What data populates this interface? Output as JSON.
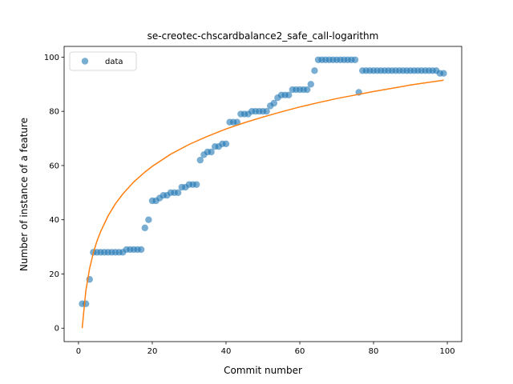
{
  "chart_data": {
    "type": "scatter",
    "title": "se-creotec-chscardbalance2_safe_call-logarithm",
    "xlabel": "Commit number",
    "ylabel": "Number of instance of a feature",
    "xlim": [
      -3.9,
      103.9
    ],
    "ylim": [
      -4.95,
      103.95
    ],
    "xticks": [
      0,
      20,
      40,
      60,
      80,
      100
    ],
    "yticks": [
      0,
      20,
      40,
      60,
      80,
      100
    ],
    "grid": false,
    "legend": {
      "location": "top-left",
      "entries": [
        "data"
      ]
    },
    "colors": {
      "data": "#1f77b4",
      "fit": "#ff7f0e"
    },
    "series": [
      {
        "name": "data",
        "kind": "scatter",
        "x": [
          1,
          2,
          3,
          4,
          5,
          6,
          7,
          8,
          9,
          10,
          11,
          12,
          13,
          14,
          15,
          16,
          17,
          18,
          19,
          20,
          21,
          22,
          23,
          24,
          25,
          26,
          27,
          28,
          29,
          30,
          31,
          32,
          33,
          34,
          35,
          36,
          37,
          38,
          39,
          40,
          41,
          42,
          43,
          44,
          45,
          46,
          47,
          48,
          49,
          50,
          51,
          52,
          53,
          54,
          55,
          56,
          57,
          58,
          59,
          60,
          61,
          62,
          63,
          64,
          65,
          66,
          67,
          68,
          69,
          70,
          71,
          72,
          73,
          74,
          75,
          76,
          77,
          78,
          79,
          80,
          81,
          82,
          83,
          84,
          85,
          86,
          87,
          88,
          89,
          90,
          91,
          92,
          93,
          94,
          95,
          96,
          97,
          98,
          99
        ],
        "y": [
          9,
          9,
          18,
          28,
          28,
          28,
          28,
          28,
          28,
          28,
          28,
          28,
          29,
          29,
          29,
          29,
          29,
          37,
          40,
          47,
          47,
          48,
          49,
          49,
          50,
          50,
          50,
          52,
          52,
          53,
          53,
          53,
          62,
          64,
          65,
          65,
          67,
          67,
          68,
          68,
          76,
          76,
          76,
          79,
          79,
          79,
          80,
          80,
          80,
          80,
          80,
          82,
          83,
          85,
          86,
          86,
          86,
          88,
          88,
          88,
          88,
          88,
          90,
          95,
          99,
          99,
          99,
          99,
          99,
          99,
          99,
          99,
          99,
          99,
          99,
          87,
          95,
          95,
          95,
          95,
          95,
          95,
          95,
          95,
          95,
          95,
          95,
          95,
          95,
          95,
          95,
          95,
          95,
          95,
          95,
          95,
          95,
          94,
          94
        ]
      },
      {
        "kind": "line",
        "x": [
          1,
          2,
          3,
          4,
          5,
          6,
          8,
          10,
          12,
          15,
          18,
          20,
          25,
          30,
          35,
          40,
          45,
          50,
          55,
          60,
          65,
          70,
          75,
          80,
          85,
          90,
          95,
          99
        ],
        "y": [
          0,
          13.8,
          21.9,
          27.6,
          32.1,
          35.7,
          41.4,
          45.9,
          49.5,
          54.0,
          57.6,
          59.7,
          64.2,
          67.8,
          70.8,
          73.5,
          75.8,
          77.9,
          79.8,
          81.6,
          83.2,
          84.7,
          86.0,
          87.3,
          88.5,
          89.7,
          90.7,
          91.5
        ]
      }
    ]
  }
}
